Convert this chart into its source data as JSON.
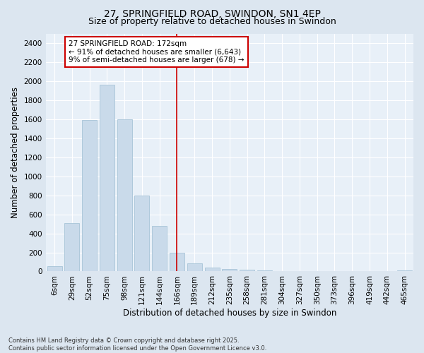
{
  "title_line1": "27, SPRINGFIELD ROAD, SWINDON, SN1 4EP",
  "title_line2": "Size of property relative to detached houses in Swindon",
  "xlabel": "Distribution of detached houses by size in Swindon",
  "ylabel": "Number of detached properties",
  "bar_labels": [
    "6sqm",
    "29sqm",
    "52sqm",
    "75sqm",
    "98sqm",
    "121sqm",
    "144sqm",
    "166sqm",
    "189sqm",
    "212sqm",
    "235sqm",
    "258sqm",
    "281sqm",
    "304sqm",
    "327sqm",
    "350sqm",
    "373sqm",
    "396sqm",
    "419sqm",
    "442sqm",
    "465sqm"
  ],
  "bar_values": [
    55,
    510,
    1590,
    1960,
    1600,
    800,
    480,
    200,
    85,
    40,
    25,
    15,
    8,
    5,
    3,
    2,
    1,
    0,
    0,
    0,
    12
  ],
  "bar_color": "#c9daea",
  "bar_edgecolor": "#a8c4d8",
  "vline_x_index": 7,
  "vline_color": "#cc0000",
  "annotation_text": "27 SPRINGFIELD ROAD: 172sqm\n← 91% of detached houses are smaller (6,643)\n9% of semi-detached houses are larger (678) →",
  "annotation_box_facecolor": "#ffffff",
  "annotation_box_edgecolor": "#cc0000",
  "ylim": [
    0,
    2500
  ],
  "yticks": [
    0,
    200,
    400,
    600,
    800,
    1000,
    1200,
    1400,
    1600,
    1800,
    2000,
    2200,
    2400
  ],
  "footnote": "Contains HM Land Registry data © Crown copyright and database right 2025.\nContains public sector information licensed under the Open Government Licence v3.0.",
  "bg_color": "#dce6f0",
  "plot_bg_color": "#e8f0f8",
  "title_fontsize": 10,
  "subtitle_fontsize": 9,
  "axis_label_fontsize": 8.5,
  "tick_fontsize": 7.5,
  "annotation_fontsize": 7.5,
  "footnote_fontsize": 6.0
}
